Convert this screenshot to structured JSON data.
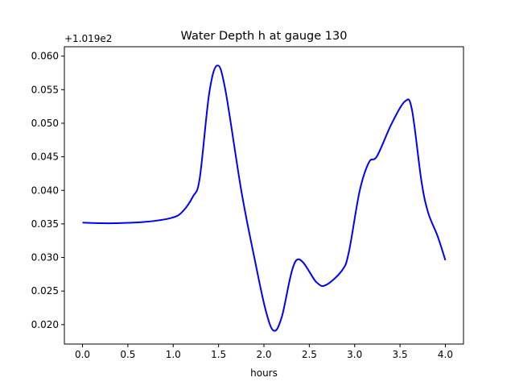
{
  "chart_data": {
    "type": "line",
    "title": "Water Depth h at gauge 130",
    "xlabel": "hours",
    "ylabel": "",
    "offset_label": "+1.019e2",
    "xlim": [
      -0.2,
      4.2
    ],
    "ylim": [
      0.0171,
      0.0614
    ],
    "xticks": [
      0.0,
      0.5,
      1.0,
      1.5,
      2.0,
      2.5,
      3.0,
      3.5,
      4.0
    ],
    "xtick_labels": [
      "0.0",
      "0.5",
      "1.0",
      "1.5",
      "2.0",
      "2.5",
      "3.0",
      "3.5",
      "4.0"
    ],
    "yticks": [
      0.02,
      0.025,
      0.03,
      0.035,
      0.04,
      0.045,
      0.05,
      0.055,
      0.06
    ],
    "ytick_labels": [
      "0.020",
      "0.025",
      "0.030",
      "0.035",
      "0.040",
      "0.045",
      "0.050",
      "0.055",
      "0.060"
    ],
    "grid": false,
    "series": [
      {
        "name": "h",
        "color": "#0000ff",
        "x": [
          0.0,
          0.3,
          0.684,
          0.98,
          1.1,
          1.218,
          1.292,
          1.396,
          1.484,
          1.573,
          1.751,
          1.9,
          2.018,
          2.107,
          2.196,
          2.358,
          2.58,
          2.684,
          2.862,
          2.936,
          3.055,
          3.158,
          3.247,
          3.41,
          3.558,
          3.632,
          3.736,
          3.81,
          3.914,
          4.0
        ],
        "y": [
          0.0352,
          0.0351,
          0.0353,
          0.0359,
          0.0368,
          0.0391,
          0.0418,
          0.0544,
          0.0586,
          0.0551,
          0.0399,
          0.0296,
          0.0222,
          0.0191,
          0.0211,
          0.0296,
          0.0263,
          0.0259,
          0.0281,
          0.0308,
          0.0399,
          0.0442,
          0.0451,
          0.05,
          0.0533,
          0.052,
          0.0414,
          0.0367,
          0.0332,
          0.0296
        ]
      }
    ]
  }
}
